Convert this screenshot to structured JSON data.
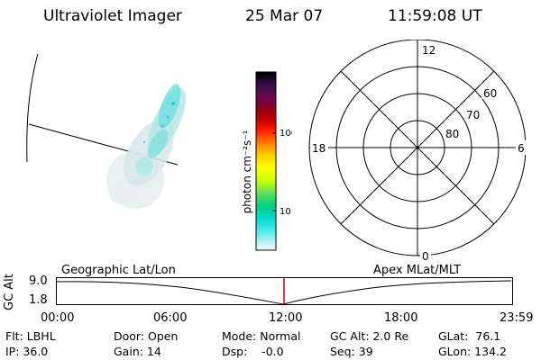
{
  "header": {
    "title": "Ultraviolet Imager",
    "date": "25 Mar 07",
    "time": "11:59:08 UT"
  },
  "colorbar": {
    "label": "photon cm⁻²s⁻¹",
    "ticks": [
      "100",
      "10"
    ],
    "colors": [
      "#000000",
      "#2a0a3e",
      "#6a0a50",
      "#8a0020",
      "#c80000",
      "#ff2000",
      "#ff8000",
      "#ffd000",
      "#ffff00",
      "#c8ff00",
      "#60e060",
      "#00d080",
      "#00d8d0",
      "#40e8e8",
      "#a0f0f0",
      "#d8f4f4",
      "#f4f8f8"
    ]
  },
  "polar": {
    "mlt_labels": {
      "top": "12",
      "left": "18",
      "right": "6",
      "bottom": "0"
    },
    "lat_labels": [
      "60",
      "70",
      "80"
    ]
  },
  "timeline": {
    "y_axis_label": "GC Alt",
    "y_ticks": [
      "9.0",
      "1.8"
    ],
    "left_label": "Geographic Lat/Lon",
    "right_label": "Apex MLat/MLT",
    "x_ticks": [
      "00:00",
      "06:00",
      "12:00",
      "18:00",
      "23:59"
    ]
  },
  "footer": {
    "row1": [
      "Flt: LBHL",
      "Door: Open",
      "Mode: Normal",
      "GC Alt: 2.0 Re",
      "GLat:  76.1"
    ],
    "row2": [
      "IP: 36.0",
      "Gain: 14",
      "Dsp:    -0.0",
      "Seq: 39",
      "GLon: 134.2"
    ]
  },
  "colors": {
    "marker": "#cc0000",
    "aurora": "#40e0e0"
  }
}
